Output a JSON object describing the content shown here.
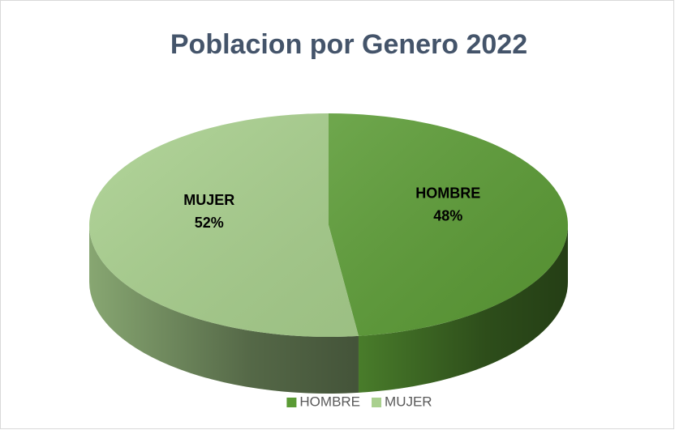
{
  "chart_data": {
    "type": "pie3d",
    "title": "Poblacion por Genero 2022",
    "categories": [
      "HOMBRE",
      "MUJER"
    ],
    "values": [
      48,
      52
    ],
    "value_labels": [
      "48%",
      "52%"
    ],
    "colors": [
      "#5b9b35",
      "#a9d08e"
    ],
    "legend": "bottom"
  }
}
